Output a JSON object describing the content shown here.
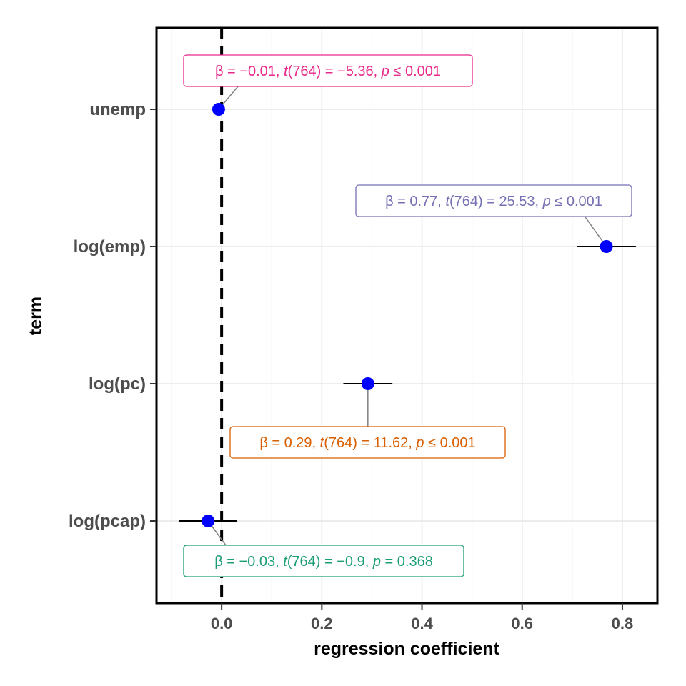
{
  "chart_data": {
    "type": "scatter",
    "xlabel": "regression coefficient",
    "ylabel": "term",
    "xlim": [
      -0.13,
      0.87
    ],
    "x_ticks": [
      {
        "value": 0.0,
        "label": "0.0"
      },
      {
        "value": 0.2,
        "label": "0.2"
      },
      {
        "value": 0.4,
        "label": "0.4"
      },
      {
        "value": 0.6,
        "label": "0.6"
      },
      {
        "value": 0.8,
        "label": "0.8"
      }
    ],
    "reference_line": 0,
    "grid": true,
    "terms": [
      {
        "term": "unemp",
        "estimate": -0.006,
        "ci_low": -0.008,
        "ci_high": -0.004,
        "color": "#e7298a",
        "annotation": {
          "beta": "-0.01",
          "df": "764",
          "t": "-5.36",
          "p_op": "≤",
          "p": "0.001"
        }
      },
      {
        "term": "log(emp)",
        "estimate": 0.768,
        "ci_low": 0.709,
        "ci_high": 0.827,
        "color": "#7570b3",
        "annotation": {
          "beta": "0.77",
          "df": "764",
          "t": "25.53",
          "p_op": "≤",
          "p": "0.001"
        }
      },
      {
        "term": "log(pc)",
        "estimate": 0.292,
        "ci_low": 0.243,
        "ci_high": 0.341,
        "color": "#d95f02",
        "annotation": {
          "beta": "0.29",
          "df": "764",
          "t": "11.62",
          "p_op": "≤",
          "p": "0.001"
        }
      },
      {
        "term": "log(pcap)",
        "estimate": -0.027,
        "ci_low": -0.085,
        "ci_high": 0.031,
        "color": "#1b9e77",
        "annotation": {
          "beta": "-0.03",
          "df": "764",
          "t": "-0.9",
          "p_op": "=",
          "p": "0.368"
        }
      }
    ],
    "point_color": "#0000ff"
  }
}
